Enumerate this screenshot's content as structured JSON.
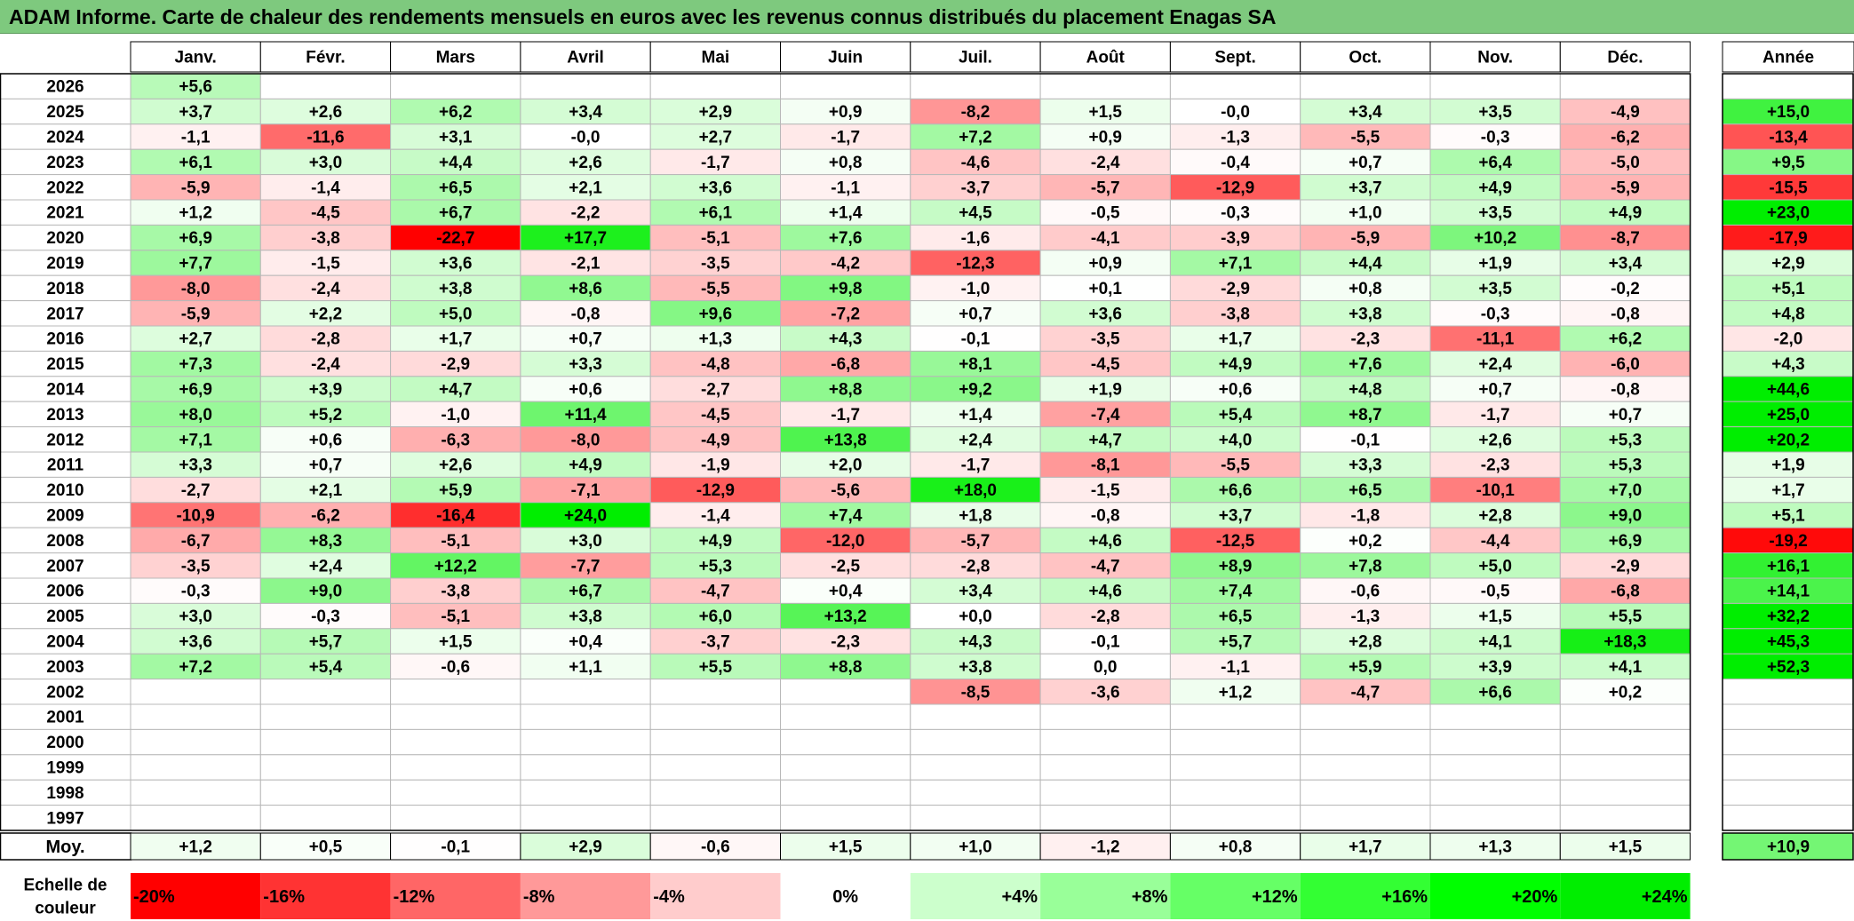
{
  "title": "ADAM Informe. Carte de chaleur des rendements mensuels en euros avec les revenus connus distribués du placement Enagas SA",
  "chart_data": {
    "type": "heatmap",
    "title": "ADAM Informe. Carte de chaleur des rendements mensuels en euros avec les revenus connus distribués du placement Enagas SA",
    "months": [
      "Janv.",
      "Févr.",
      "Mars",
      "Avril",
      "Mai",
      "Juin",
      "Juil.",
      "Août",
      "Sept.",
      "Oct.",
      "Nov.",
      "Déc."
    ],
    "year_header": "Année",
    "rows": [
      {
        "year": "2026",
        "values": [
          "+5,6",
          "",
          "",
          "",
          "",
          "",
          "",
          "",
          "",
          "",
          "",
          ""
        ],
        "annual": ""
      },
      {
        "year": "2025",
        "values": [
          "+3,7",
          "+2,6",
          "+6,2",
          "+3,4",
          "+2,9",
          "+0,9",
          "-8,2",
          "+1,5",
          "-0,0",
          "+3,4",
          "+3,5",
          "-4,9"
        ],
        "annual": "+15,0"
      },
      {
        "year": "2024",
        "values": [
          "-1,1",
          "-11,6",
          "+3,1",
          "-0,0",
          "+2,7",
          "-1,7",
          "+7,2",
          "+0,9",
          "-1,3",
          "-5,5",
          "-0,3",
          "-6,2"
        ],
        "annual": "-13,4"
      },
      {
        "year": "2023",
        "values": [
          "+6,1",
          "+3,0",
          "+4,4",
          "+2,6",
          "-1,7",
          "+0,8",
          "-4,6",
          "-2,4",
          "-0,4",
          "+0,7",
          "+6,4",
          "-5,0"
        ],
        "annual": "+9,5"
      },
      {
        "year": "2022",
        "values": [
          "-5,9",
          "-1,4",
          "+6,5",
          "+2,1",
          "+3,6",
          "-1,1",
          "-3,7",
          "-5,7",
          "-12,9",
          "+3,7",
          "+4,9",
          "-5,9"
        ],
        "annual": "-15,5"
      },
      {
        "year": "2021",
        "values": [
          "+1,2",
          "-4,5",
          "+6,7",
          "-2,2",
          "+6,1",
          "+1,4",
          "+4,5",
          "-0,5",
          "-0,3",
          "+1,0",
          "+3,5",
          "+4,9"
        ],
        "annual": "+23,0"
      },
      {
        "year": "2020",
        "values": [
          "+6,9",
          "-3,8",
          "-22,7",
          "+17,7",
          "-5,1",
          "+7,6",
          "-1,6",
          "-4,1",
          "-3,9",
          "-5,9",
          "+10,2",
          "-8,7"
        ],
        "annual": "-17,9"
      },
      {
        "year": "2019",
        "values": [
          "+7,7",
          "-1,5",
          "+3,6",
          "-2,1",
          "-3,5",
          "-4,2",
          "-12,3",
          "+0,9",
          "+7,1",
          "+4,4",
          "+1,9",
          "+3,4"
        ],
        "annual": "+2,9"
      },
      {
        "year": "2018",
        "values": [
          "-8,0",
          "-2,4",
          "+3,8",
          "+8,6",
          "-5,5",
          "+9,8",
          "-1,0",
          "+0,1",
          "-2,9",
          "+0,8",
          "+3,5",
          "-0,2"
        ],
        "annual": "+5,1"
      },
      {
        "year": "2017",
        "values": [
          "-5,9",
          "+2,2",
          "+5,0",
          "-0,8",
          "+9,6",
          "-7,2",
          "+0,7",
          "+3,6",
          "-3,8",
          "+3,8",
          "-0,3",
          "-0,8"
        ],
        "annual": "+4,8"
      },
      {
        "year": "2016",
        "values": [
          "+2,7",
          "-2,8",
          "+1,7",
          "+0,7",
          "+1,3",
          "+4,3",
          "-0,1",
          "-3,5",
          "+1,7",
          "-2,3",
          "-11,1",
          "+6,2"
        ],
        "annual": "-2,0"
      },
      {
        "year": "2015",
        "values": [
          "+7,3",
          "-2,4",
          "-2,9",
          "+3,3",
          "-4,8",
          "-6,8",
          "+8,1",
          "-4,5",
          "+4,9",
          "+7,6",
          "+2,4",
          "-6,0"
        ],
        "annual": "+4,3"
      },
      {
        "year": "2014",
        "values": [
          "+6,9",
          "+3,9",
          "+4,7",
          "+0,6",
          "-2,7",
          "+8,8",
          "+9,2",
          "+1,9",
          "+0,6",
          "+4,8",
          "+0,7",
          "-0,8"
        ],
        "annual": "+44,6"
      },
      {
        "year": "2013",
        "values": [
          "+8,0",
          "+5,2",
          "-1,0",
          "+11,4",
          "-4,5",
          "-1,7",
          "+1,4",
          "-7,4",
          "+5,4",
          "+8,7",
          "-1,7",
          "+0,7"
        ],
        "annual": "+25,0"
      },
      {
        "year": "2012",
        "values": [
          "+7,1",
          "+0,6",
          "-6,3",
          "-8,0",
          "-4,9",
          "+13,8",
          "+2,4",
          "+4,7",
          "+4,0",
          "-0,1",
          "+2,6",
          "+5,3"
        ],
        "annual": "+20,2"
      },
      {
        "year": "2011",
        "values": [
          "+3,3",
          "+0,7",
          "+2,6",
          "+4,9",
          "-1,9",
          "+2,0",
          "-1,7",
          "-8,1",
          "-5,5",
          "+3,3",
          "-2,3",
          "+5,3"
        ],
        "annual": "+1,9"
      },
      {
        "year": "2010",
        "values": [
          "-2,7",
          "+2,1",
          "+5,9",
          "-7,1",
          "-12,9",
          "-5,6",
          "+18,0",
          "-1,5",
          "+6,6",
          "+6,5",
          "-10,1",
          "+7,0"
        ],
        "annual": "+1,7"
      },
      {
        "year": "2009",
        "values": [
          "-10,9",
          "-6,2",
          "-16,4",
          "+24,0",
          "-1,4",
          "+7,4",
          "+1,8",
          "-0,8",
          "+3,7",
          "-1,8",
          "+2,8",
          "+9,0"
        ],
        "annual": "+5,1"
      },
      {
        "year": "2008",
        "values": [
          "-6,7",
          "+8,3",
          "-5,1",
          "+3,0",
          "+4,9",
          "-12,0",
          "-5,7",
          "+4,6",
          "-12,5",
          "+0,2",
          "-4,4",
          "+6,9"
        ],
        "annual": "-19,2"
      },
      {
        "year": "2007",
        "values": [
          "-3,5",
          "+2,4",
          "+12,2",
          "-7,7",
          "+5,3",
          "-2,5",
          "-2,8",
          "-4,7",
          "+8,9",
          "+7,8",
          "+5,0",
          "-2,9"
        ],
        "annual": "+16,1"
      },
      {
        "year": "2006",
        "values": [
          "-0,3",
          "+9,0",
          "-3,8",
          "+6,7",
          "-4,7",
          "+0,4",
          "+3,4",
          "+4,6",
          "+7,4",
          "-0,6",
          "-0,5",
          "-6,8"
        ],
        "annual": "+14,1"
      },
      {
        "year": "2005",
        "values": [
          "+3,0",
          "-0,3",
          "-5,1",
          "+3,8",
          "+6,0",
          "+13,2",
          "+0,0",
          "-2,8",
          "+6,5",
          "-1,3",
          "+1,5",
          "+5,5"
        ],
        "annual": "+32,2"
      },
      {
        "year": "2004",
        "values": [
          "+3,6",
          "+5,7",
          "+1,5",
          "+0,4",
          "-3,7",
          "-2,3",
          "+4,3",
          "-0,1",
          "+5,7",
          "+2,8",
          "+4,1",
          "+18,3"
        ],
        "annual": "+45,3"
      },
      {
        "year": "2003",
        "values": [
          "+7,2",
          "+5,4",
          "-0,6",
          "+1,1",
          "+5,5",
          "+8,8",
          "+3,8",
          "0,0",
          "-1,1",
          "+5,9",
          "+3,9",
          "+4,1"
        ],
        "annual": "+52,3"
      },
      {
        "year": "2002",
        "values": [
          "",
          "",
          "",
          "",
          "",
          "",
          "-8,5",
          "-3,6",
          "+1,2",
          "-4,7",
          "+6,6",
          "+0,2"
        ],
        "annual": ""
      },
      {
        "year": "2001",
        "values": [
          "",
          "",
          "",
          "",
          "",
          "",
          "",
          "",
          "",
          "",
          "",
          ""
        ],
        "annual": ""
      },
      {
        "year": "2000",
        "values": [
          "",
          "",
          "",
          "",
          "",
          "",
          "",
          "",
          "",
          "",
          "",
          ""
        ],
        "annual": ""
      },
      {
        "year": "1999",
        "values": [
          "",
          "",
          "",
          "",
          "",
          "",
          "",
          "",
          "",
          "",
          "",
          ""
        ],
        "annual": ""
      },
      {
        "year": "1998",
        "values": [
          "",
          "",
          "",
          "",
          "",
          "",
          "",
          "",
          "",
          "",
          "",
          ""
        ],
        "annual": ""
      },
      {
        "year": "1997",
        "values": [
          "",
          "",
          "",
          "",
          "",
          "",
          "",
          "",
          "",
          "",
          "",
          ""
        ],
        "annual": ""
      }
    ],
    "average": {
      "label": "Moy.",
      "values": [
        "+1,2",
        "+0,5",
        "-0,1",
        "+2,9",
        "-0,6",
        "+1,5",
        "+1,0",
        "-1,2",
        "+0,8",
        "+1,7",
        "+1,3",
        "+1,5"
      ],
      "annual": "+10,9"
    },
    "color_scale": {
      "label_line1": "Echelle de",
      "label_line2": "couleur",
      "steps": [
        {
          "label": "-20%",
          "value": -20,
          "color": "#ff0000"
        },
        {
          "label": "-16%",
          "value": -16,
          "color": "#ff3333"
        },
        {
          "label": "-12%",
          "value": -12,
          "color": "#ff6666"
        },
        {
          "label": "-8%",
          "value": -8,
          "color": "#ff9999"
        },
        {
          "label": "-4%",
          "value": -4,
          "color": "#ffcccc"
        },
        {
          "label": "0%",
          "value": 0,
          "color": "#ffffff"
        },
        {
          "label": "+4%",
          "value": 4,
          "color": "#ccffcc"
        },
        {
          "label": "+8%",
          "value": 8,
          "color": "#99ff99"
        },
        {
          "label": "+12%",
          "value": 12,
          "color": "#66ff66"
        },
        {
          "label": "+16%",
          "value": 16,
          "color": "#33ff33"
        },
        {
          "label": "+20%",
          "value": 20,
          "color": "#00ff00"
        },
        {
          "label": "+24%",
          "value": 24,
          "color": "#00ee00"
        }
      ]
    },
    "colors": {
      "title_bg": "#7ec97e",
      "negative_max": "#ff0000",
      "positive_max": "#00ee00",
      "neutral": "#ffffff",
      "grid": "#b8b8b8"
    }
  }
}
